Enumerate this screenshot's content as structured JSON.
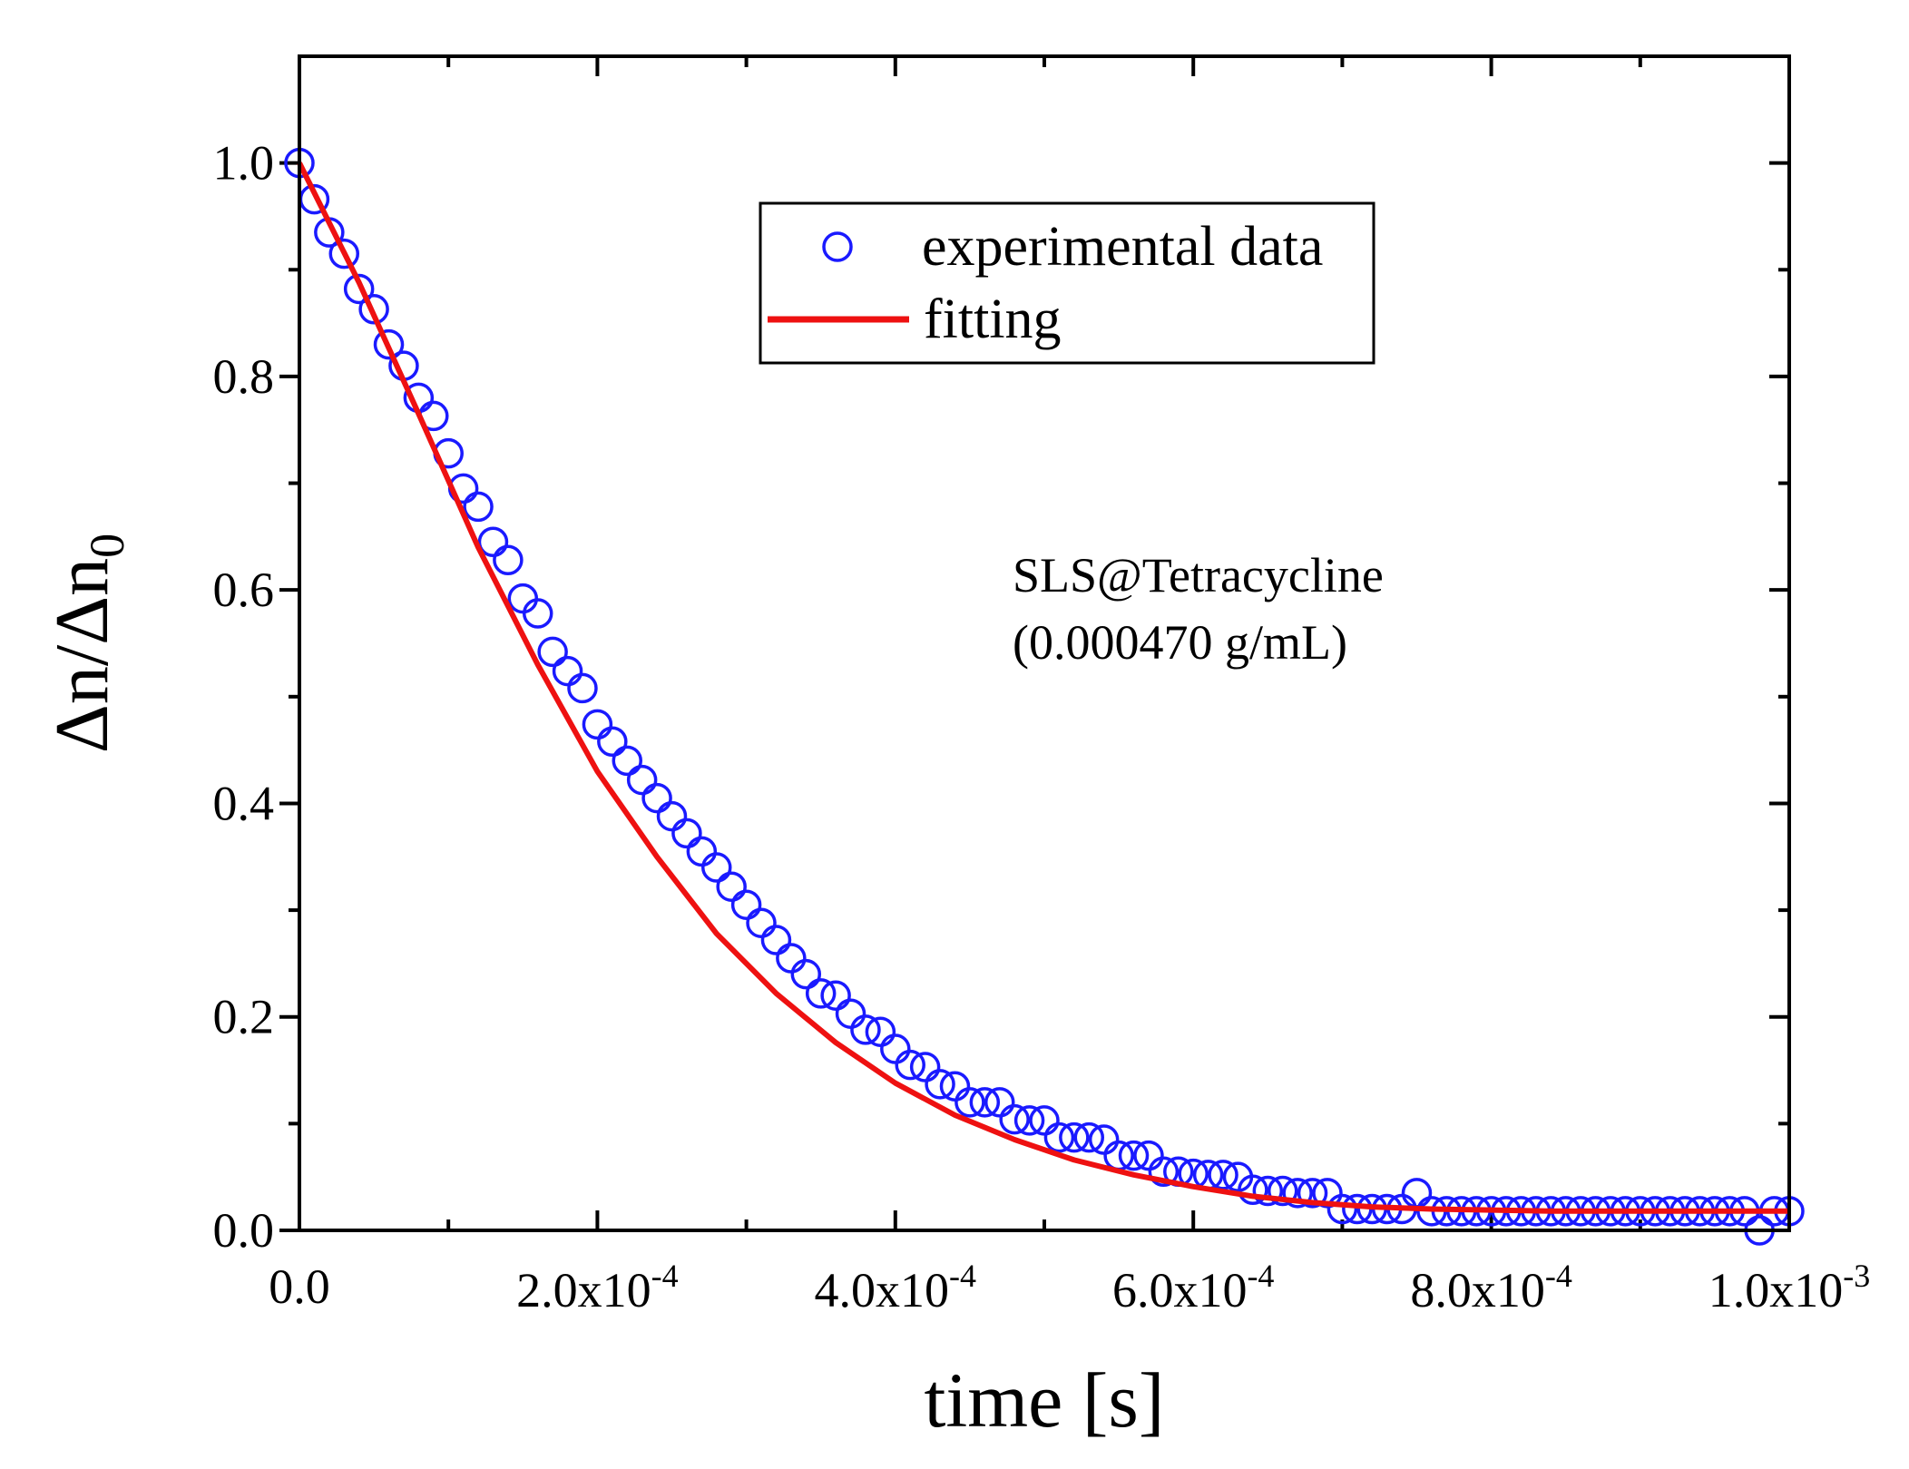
{
  "chart_data": {
    "type": "scatter",
    "title": "",
    "xlabel": "time [s]",
    "ylabel": {
      "base": "Δn/Δn",
      "sub": "0"
    },
    "xlim": [
      0,
      0.001
    ],
    "ylim": [
      0,
      1.1
    ],
    "x_ticks": [
      {
        "value": 0.0,
        "mantissa": "0.0",
        "exp": ""
      },
      {
        "value": 0.0002,
        "mantissa": "2.0x10",
        "exp": "-4"
      },
      {
        "value": 0.0004,
        "mantissa": "4.0x10",
        "exp": "-4"
      },
      {
        "value": 0.0006,
        "mantissa": "6.0x10",
        "exp": "-4"
      },
      {
        "value": 0.0008,
        "mantissa": "8.0x10",
        "exp": "-4"
      },
      {
        "value": 0.001,
        "mantissa": "1.0x10",
        "exp": "-3"
      }
    ],
    "y_ticks": [
      {
        "value": 0.0,
        "label": "0.0"
      },
      {
        "value": 0.2,
        "label": "0.2"
      },
      {
        "value": 0.4,
        "label": "0.4"
      },
      {
        "value": 0.6,
        "label": "0.6"
      },
      {
        "value": 0.8,
        "label": "0.8"
      },
      {
        "value": 1.0,
        "label": "1.0"
      }
    ],
    "grid": false,
    "legend": {
      "placement": "top-center",
      "entries": [
        {
          "label": "experimental data",
          "marker": "open-circle",
          "color": "#1a1aff"
        },
        {
          "label": "fitting",
          "marker": "line",
          "color": "#ee1111"
        }
      ]
    },
    "annotation": {
      "line1": "SLS@Tetracycline",
      "line2": "(0.000470 g/mL)"
    },
    "series": [
      {
        "name": "experimental data",
        "kind": "markers",
        "color": "#1a1aff",
        "x": [
          0,
          1e-05,
          2e-05,
          3e-05,
          4e-05,
          5e-05,
          6e-05,
          7e-05,
          8e-05,
          9e-05,
          0.0001,
          0.00011,
          0.00012,
          0.00013,
          0.00014,
          0.00015,
          0.00016,
          0.00017,
          0.00018,
          0.00019,
          0.0002,
          0.00021,
          0.00022,
          0.00023,
          0.00024,
          0.00025,
          0.00026,
          0.00027,
          0.00028,
          0.00029,
          0.0003,
          0.00031,
          0.00032,
          0.00033,
          0.00034,
          0.00035,
          0.00036,
          0.00037,
          0.00038,
          0.00039,
          0.0004,
          0.00041,
          0.00042,
          0.00043,
          0.00044,
          0.00045,
          0.00046,
          0.00047,
          0.00048,
          0.00049,
          0.0005,
          0.00051,
          0.00052,
          0.00053,
          0.00054,
          0.00055,
          0.00056,
          0.00057,
          0.00058,
          0.00059,
          0.0006,
          0.00061,
          0.00062,
          0.00063,
          0.00064,
          0.00065,
          0.00066,
          0.00067,
          0.00068,
          0.00069,
          0.0007,
          0.00071,
          0.00072,
          0.00073,
          0.00074,
          0.00075,
          0.00076,
          0.00077,
          0.00078,
          0.00079,
          0.0008,
          0.00081,
          0.00082,
          0.00083,
          0.00084,
          0.00085,
          0.00086,
          0.00087,
          0.00088,
          0.00089,
          0.0009,
          0.00091,
          0.00092,
          0.00093,
          0.00094,
          0.00095,
          0.00096,
          0.00097,
          0.00098,
          0.00099,
          0.001
        ],
        "y": [
          1.0,
          0.966,
          0.935,
          0.915,
          0.882,
          0.863,
          0.83,
          0.81,
          0.78,
          0.763,
          0.728,
          0.695,
          0.678,
          0.645,
          0.628,
          0.592,
          0.578,
          0.542,
          0.524,
          0.508,
          0.474,
          0.458,
          0.44,
          0.422,
          0.405,
          0.388,
          0.372,
          0.355,
          0.34,
          0.322,
          0.305,
          0.288,
          0.272,
          0.255,
          0.24,
          0.222,
          0.22,
          0.203,
          0.188,
          0.186,
          0.17,
          0.155,
          0.153,
          0.137,
          0.135,
          0.12,
          0.12,
          0.12,
          0.104,
          0.103,
          0.103,
          0.087,
          0.087,
          0.087,
          0.085,
          0.07,
          0.07,
          0.07,
          0.055,
          0.055,
          0.053,
          0.052,
          0.052,
          0.05,
          0.038,
          0.037,
          0.037,
          0.035,
          0.035,
          0.035,
          0.02,
          0.02,
          0.02,
          0.02,
          0.02,
          0.035,
          0.018,
          0.018,
          0.018,
          0.018,
          0.018,
          0.018,
          0.018,
          0.018,
          0.018,
          0.018,
          0.018,
          0.018,
          0.018,
          0.018,
          0.018,
          0.018,
          0.018,
          0.018,
          0.018,
          0.018,
          0.018,
          0.018,
          0.0,
          0.018,
          0.018
        ]
      },
      {
        "name": "fitting",
        "kind": "line",
        "color": "#ee1111",
        "x": [
          0,
          4e-05,
          8e-05,
          0.00012,
          0.00016,
          0.0002,
          0.00024,
          0.00028,
          0.00032,
          0.00036,
          0.0004,
          0.00044,
          0.00048,
          0.00052,
          0.00056,
          0.0006,
          0.00064,
          0.00068,
          0.00072,
          0.00076,
          0.0008,
          0.00084,
          0.00088,
          0.00092,
          0.00096,
          0.001
        ],
        "y": [
          1.0,
          0.888,
          0.765,
          0.64,
          0.53,
          0.43,
          0.35,
          0.278,
          0.222,
          0.176,
          0.138,
          0.108,
          0.085,
          0.066,
          0.052,
          0.041,
          0.032,
          0.026,
          0.022,
          0.02,
          0.019,
          0.018,
          0.018,
          0.018,
          0.018,
          0.018
        ]
      }
    ]
  }
}
